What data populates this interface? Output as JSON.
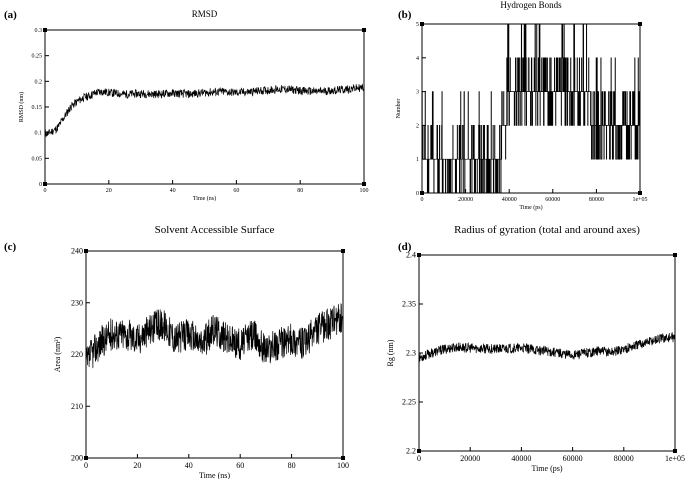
{
  "panels": [
    {
      "letter": "(a)"
    },
    {
      "letter": "(b)"
    },
    {
      "letter": "(c)"
    },
    {
      "letter": "(d)"
    }
  ],
  "chart_data": [
    {
      "type": "line",
      "title": "RMSD",
      "xlabel": "Time (ns)",
      "ylabel": "RMSD (nm)",
      "xlim": [
        0,
        100
      ],
      "ylim": [
        0,
        0.3
      ],
      "x_ticks": [
        "0",
        "20",
        "40",
        "60",
        "80",
        "100"
      ],
      "y_ticks": [
        "0",
        "0.05",
        "0.1",
        "0.15",
        "0.2",
        "0.25",
        "0.3"
      ],
      "series": [
        {
          "x": [
            0,
            1,
            2,
            3,
            4,
            5,
            6,
            7,
            8,
            10,
            12,
            14,
            16,
            18,
            20,
            25,
            30,
            35,
            40,
            45,
            50,
            55,
            60,
            65,
            70,
            75,
            80,
            85,
            90,
            95,
            100
          ],
          "y": [
            0.1,
            0.098,
            0.102,
            0.105,
            0.11,
            0.12,
            0.13,
            0.14,
            0.15,
            0.16,
            0.168,
            0.172,
            0.178,
            0.18,
            0.178,
            0.175,
            0.176,
            0.175,
            0.177,
            0.175,
            0.178,
            0.18,
            0.178,
            0.18,
            0.183,
            0.185,
            0.182,
            0.18,
            0.182,
            0.185,
            0.188
          ]
        }
      ]
    },
    {
      "type": "line",
      "title": "Hydrogen Bonds",
      "xlabel": "Time (ps)",
      "ylabel": "Number",
      "xlim": [
        0,
        100000
      ],
      "ylim": [
        0,
        5
      ],
      "x_ticks": [
        "0",
        "20000",
        "40000",
        "60000",
        "80000",
        "1e+05"
      ],
      "y_ticks": [
        "0",
        "1",
        "2",
        "3",
        "4",
        "5"
      ],
      "series": [
        {
          "x": [
            0,
            5000,
            10000,
            15000,
            20000,
            25000,
            30000,
            35000,
            40000,
            45000,
            50000,
            55000,
            60000,
            65000,
            70000,
            75000,
            80000,
            85000,
            90000,
            95000,
            100000
          ],
          "y": [
            1,
            1,
            1,
            1,
            1,
            1,
            1,
            1,
            3,
            3,
            3,
            3,
            3,
            3,
            3,
            3,
            2,
            2,
            2,
            2,
            2
          ]
        }
      ]
    },
    {
      "type": "line",
      "title": "Solvent Accessible Surface",
      "xlabel": "Time (ns)",
      "ylabel": "Area (nm²)",
      "xlim": [
        0,
        100
      ],
      "ylim": [
        200,
        240
      ],
      "x_ticks": [
        "0",
        "20",
        "40",
        "60",
        "80",
        "100"
      ],
      "y_ticks": [
        "200",
        "210",
        "220",
        "230",
        "240"
      ],
      "series": [
        {
          "x": [
            0,
            2,
            5,
            10,
            15,
            20,
            25,
            30,
            35,
            40,
            45,
            50,
            55,
            60,
            65,
            70,
            75,
            80,
            85,
            90,
            95,
            100
          ],
          "y": [
            218,
            220,
            222,
            224,
            224,
            223,
            225,
            226,
            223,
            224,
            222,
            225,
            223,
            222,
            224,
            221,
            222,
            223,
            222,
            225,
            226,
            227
          ]
        }
      ]
    },
    {
      "type": "line",
      "title": "Radius of gyration (total and around axes)",
      "xlabel": "Time (ps)",
      "ylabel": "Rg (nm)",
      "xlim": [
        0,
        100000
      ],
      "ylim": [
        2.2,
        2.4
      ],
      "x_ticks": [
        "0",
        "20000",
        "40000",
        "60000",
        "80000",
        "1e+05"
      ],
      "y_ticks": [
        "2.2",
        "2.25",
        "2.3",
        "2.35",
        "2.4"
      ],
      "series": [
        {
          "x": [
            0,
            5000,
            10000,
            15000,
            20000,
            30000,
            40000,
            50000,
            55000,
            60000,
            65000,
            70000,
            75000,
            80000,
            85000,
            90000,
            95000,
            100000
          ],
          "y": [
            2.295,
            2.3,
            2.304,
            2.306,
            2.305,
            2.304,
            2.305,
            2.302,
            2.3,
            2.298,
            2.3,
            2.302,
            2.301,
            2.304,
            2.308,
            2.312,
            2.315,
            2.316
          ]
        }
      ]
    }
  ]
}
